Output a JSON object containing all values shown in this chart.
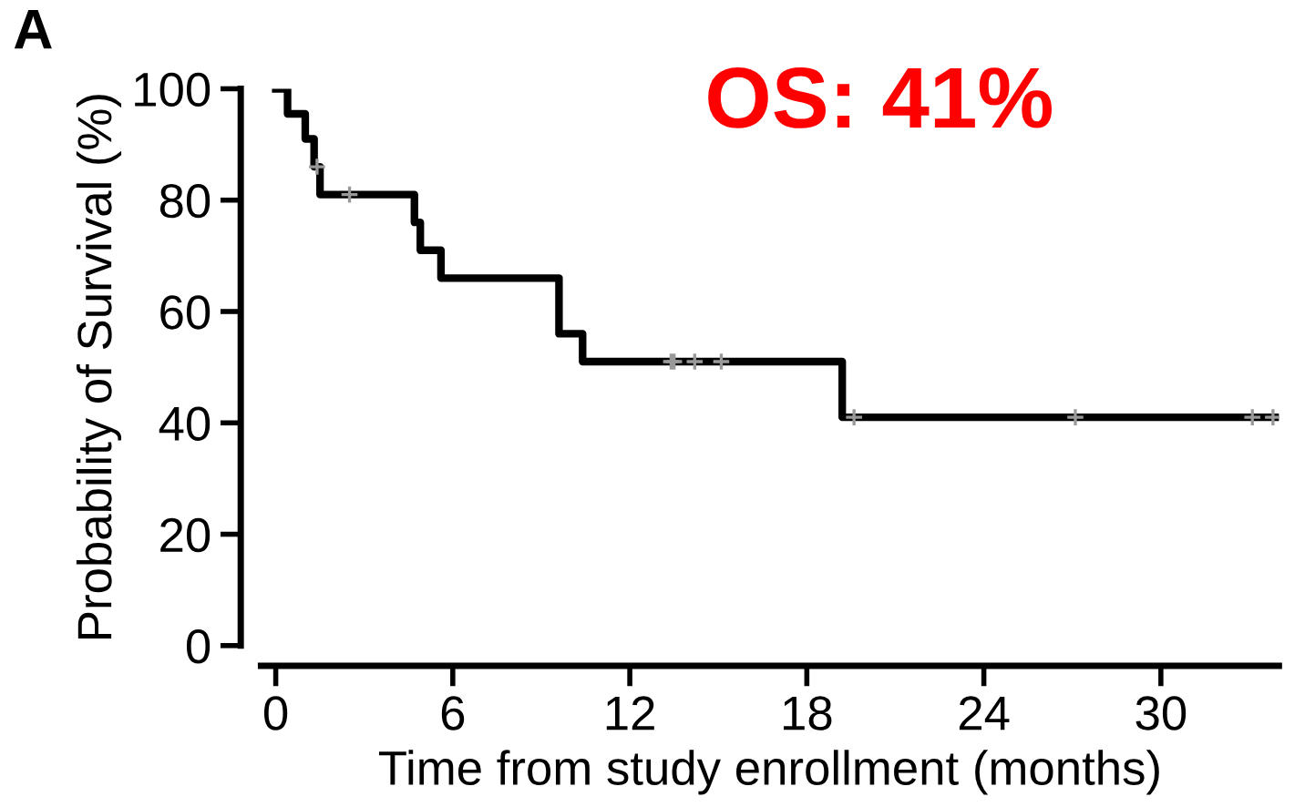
{
  "chart_data": {
    "type": "step",
    "xlabel": "Time from study enrollment (months)",
    "ylabel": "Probability of Survival (%)",
    "xlim": [
      -0.5,
      34
    ],
    "xticks": [
      0,
      6,
      12,
      18,
      24,
      30
    ],
    "ylim": [
      0,
      100
    ],
    "yticks": [
      0,
      20,
      40,
      60,
      80,
      100
    ],
    "grid": false,
    "legend": false,
    "annotations": [
      "A",
      "OS: 41%"
    ],
    "series": [
      {
        "color": "#000000",
        "marker": "none",
        "x": [
          0,
          0.4,
          1.0,
          1.3,
          1.5,
          4.7,
          4.9,
          5.6,
          9.6,
          10.4,
          19.2,
          33.9
        ],
        "values": [
          100,
          95.5,
          91,
          86,
          81,
          76,
          71,
          66,
          56,
          51,
          41,
          41
        ]
      },
      {
        "type": "scatter",
        "color": "#999999",
        "marker": "cross",
        "x": [
          1.4,
          2.5,
          13.4,
          13.5,
          14.2,
          15.1,
          19.6,
          27.1,
          33.1,
          33.8
        ],
        "values": [
          86,
          81,
          51,
          51,
          51,
          51,
          41,
          41,
          41,
          41
        ]
      }
    ]
  }
}
